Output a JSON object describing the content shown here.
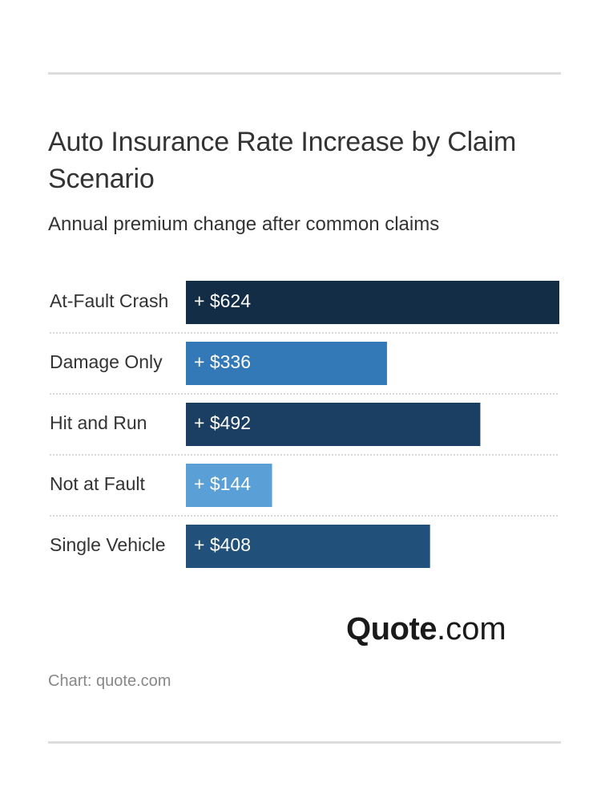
{
  "chart_data": {
    "type": "bar",
    "orientation": "horizontal",
    "title": "Auto Insurance Rate Increase by Claim Scenario",
    "subtitle": "Annual premium change after common claims",
    "categories": [
      "At-Fault Crash",
      "Damage Only",
      "Hit and Run",
      "Not at Fault",
      "Single Vehicle"
    ],
    "values": [
      624,
      336,
      492,
      144,
      408
    ],
    "value_labels": [
      "+ $624",
      "+ $336",
      "+ $492",
      "+ $144",
      "+ $408"
    ],
    "colors": [
      "#142d46",
      "#3479b7",
      "#1b3f62",
      "#5a9fd6",
      "#21507a"
    ],
    "logo": {
      "brand": "Quote",
      "suffix": ".com"
    },
    "source": "Chart: quote.com"
  }
}
